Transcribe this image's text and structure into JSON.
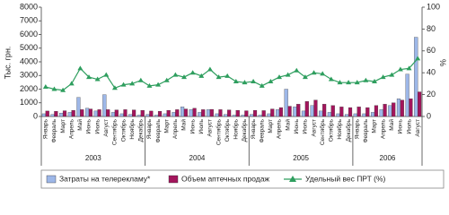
{
  "chart_data": {
    "type": "combo",
    "y_label": "Тыс. грн.",
    "y2_label": "%",
    "groups": [
      {
        "label": "2003",
        "categories": [
          "Январь",
          "Февраль",
          "Март",
          "Апрель",
          "Май",
          "Июнь",
          "Июль",
          "Август",
          "Сентябрь",
          "Октябрь",
          "Ноябрь",
          "Декабрь"
        ]
      },
      {
        "label": "2004",
        "categories": [
          "Январь",
          "Февраль",
          "Март",
          "Апрель",
          "Май",
          "Июнь",
          "Июль",
          "Август",
          "Сентябрь",
          "Октябрь",
          "Ноябрь",
          "Декабрь"
        ]
      },
      {
        "label": "2005",
        "categories": [
          "Январь",
          "Февраль",
          "Март",
          "Апрель",
          "Май",
          "Июнь",
          "Июль",
          "Август",
          "Сентябрь",
          "Октябрь",
          "Ноябрь",
          "Декабрь"
        ]
      },
      {
        "label": "2006",
        "categories": [
          "Январь",
          "Февраль",
          "Март",
          "Апрель",
          "Май",
          "Июнь",
          "Июль",
          "Август"
        ]
      }
    ],
    "series": [
      {
        "name": "Затраты на телерекламу*",
        "type": "bar",
        "color": "#9db7e8",
        "values": [
          200,
          150,
          250,
          300,
          1400,
          600,
          400,
          1600,
          300,
          200,
          150,
          100,
          150,
          100,
          200,
          300,
          700,
          500,
          300,
          500,
          200,
          150,
          100,
          100,
          150,
          100,
          200,
          500,
          2000,
          700,
          400,
          800,
          400,
          300,
          200,
          150,
          200,
          200,
          300,
          500,
          800,
          1300,
          3100,
          5800
        ]
      },
      {
        "name": "Объем аптечных продаж",
        "type": "bar",
        "color": "#a3155c",
        "values": [
          400,
          380,
          420,
          450,
          500,
          550,
          500,
          500,
          480,
          500,
          480,
          450,
          400,
          380,
          450,
          500,
          550,
          600,
          500,
          520,
          500,
          480,
          450,
          420,
          450,
          430,
          550,
          650,
          750,
          900,
          1100,
          1200,
          900,
          800,
          700,
          650,
          700,
          650,
          800,
          900,
          1000,
          1200,
          1300,
          1800
        ]
      },
      {
        "name": "Удельный вес ПРТ (%)",
        "type": "line",
        "axis": "y2",
        "color": "#2e9e5e",
        "values": [
          27,
          25,
          24,
          30,
          44,
          36,
          34,
          38,
          26,
          29,
          30,
          33,
          28,
          29,
          33,
          38,
          36,
          40,
          37,
          43,
          36,
          37,
          32,
          31,
          32,
          28,
          32,
          36,
          38,
          42,
          36,
          40,
          39,
          34,
          31,
          31,
          31,
          33,
          32,
          36,
          38,
          43,
          44,
          53
        ]
      }
    ],
    "ylim": [
      0,
      8000
    ],
    "yticks": [
      0,
      1000,
      2000,
      3000,
      4000,
      5000,
      6000,
      7000,
      8000
    ],
    "y2lim": [
      0,
      100
    ],
    "y2ticks": [
      0,
      20,
      40,
      60,
      80,
      100
    ]
  }
}
